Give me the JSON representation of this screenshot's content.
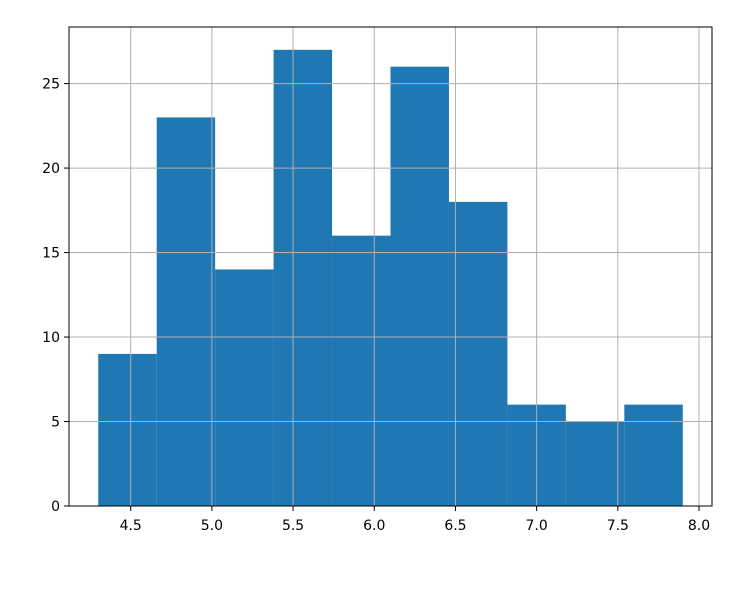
{
  "chart_data": {
    "type": "histogram",
    "bins": [
      4.3,
      4.66,
      5.02,
      5.38,
      5.74,
      6.1,
      6.46,
      6.82,
      7.18,
      7.54,
      7.9
    ],
    "values": [
      9,
      23,
      14,
      27,
      16,
      26,
      18,
      6,
      5,
      6
    ],
    "color": "#1f77b4",
    "xlim": [
      4.12,
      8.08
    ],
    "xticks": [
      4.5,
      {
        "value": 5,
        "label": "5.0"
      },
      5.5,
      {
        "value": 6,
        "label": "6.0"
      },
      6.5,
      {
        "value": 7,
        "label": "7.0"
      },
      7.5,
      {
        "value": 8,
        "label": "8.0"
      }
    ],
    "ylim": [
      0,
      28.35
    ],
    "yticks": [
      0,
      5,
      10,
      15,
      20,
      25
    ],
    "grid": true
  }
}
